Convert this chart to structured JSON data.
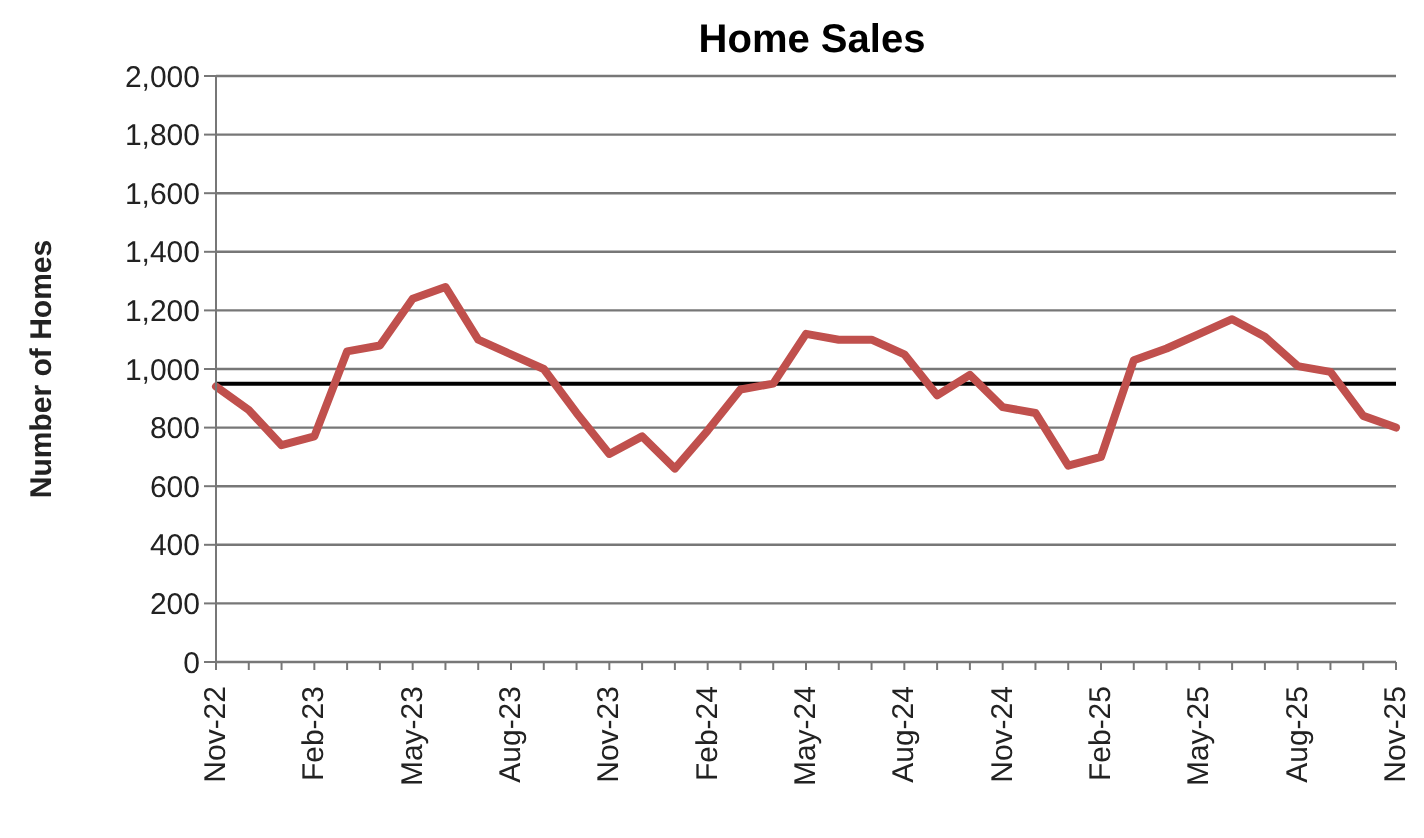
{
  "chart_data": {
    "type": "line",
    "title": "Home Sales",
    "ylabel": "Number of Homes",
    "categories": [
      "Nov-22",
      null,
      null,
      "Feb-23",
      null,
      null,
      "May-23",
      null,
      null,
      "Aug-23",
      null,
      null,
      "Nov-23",
      null,
      null,
      "Feb-24",
      null,
      null,
      "May-24",
      null,
      null,
      "Aug-24",
      null,
      null,
      "Nov-24",
      null,
      null,
      "Feb-25",
      null,
      null,
      "May-25",
      null,
      null,
      "Aug-25",
      null,
      null,
      "Nov-25"
    ],
    "series": [
      {
        "color": "#c0504d",
        "values": [
          940,
          860,
          740,
          770,
          1060,
          1080,
          1240,
          1280,
          1100,
          1050,
          1000,
          850,
          710,
          770,
          660,
          790,
          930,
          950,
          1120,
          1100,
          1100,
          1050,
          910,
          980,
          870,
          850,
          670,
          700,
          1030,
          1070,
          1120,
          1170,
          1110,
          1010,
          990,
          840,
          800
        ]
      }
    ],
    "ylim": [
      0,
      2000
    ],
    "yticks": [
      0,
      200,
      400,
      600,
      800,
      {
        "value": 1000,
        "label": "1,000"
      },
      {
        "value": 1200,
        "label": "1,200"
      },
      {
        "value": 1400,
        "label": "1,400"
      },
      {
        "value": 1600,
        "label": "1,600"
      },
      {
        "value": 1800,
        "label": "1,800"
      },
      {
        "value": 2000,
        "label": "2,000"
      }
    ],
    "grid": "y",
    "line_style": "solid",
    "ref_lines": [
      {
        "axis": "y",
        "value": 950,
        "color": "#000000"
      }
    ]
  }
}
